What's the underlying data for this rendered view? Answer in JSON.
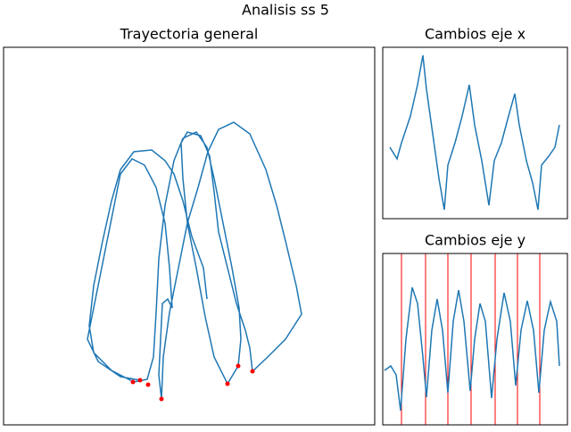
{
  "title": "Analisis ss 5",
  "chart_data": [
    {
      "type": "line",
      "title": "Trayectoria general",
      "xlim": [
        0,
        416
      ],
      "ylim": [
        0,
        423
      ],
      "x": [
        228,
        224,
        211,
        201,
        191,
        181,
        166,
        146,
        131,
        121,
        111,
        101,
        96,
        101,
        121,
        146,
        161,
        168,
        171,
        174,
        181,
        191,
        201,
        216,
        228,
        236,
        246,
        256,
        264,
        266,
        263,
        251,
        236,
        226,
        216,
        206,
        201,
        199,
        206,
        221,
        231,
        236,
        241,
        251,
        261,
        271,
        276,
        279,
        296,
        316,
        334,
        328,
        316,
        306,
        294,
        276,
        258,
        241,
        229,
        218,
        206,
        196,
        186,
        179,
        177,
        174,
        176,
        178,
        184,
        189,
        186,
        181,
        171,
        158,
        144,
        131,
        124,
        114,
        104,
        94,
        106,
        131,
        153
      ],
      "series": [
        {
          "color": "#1f77b4",
          "values": [
            141,
            176,
            211,
            251,
            281,
            296,
            308,
            306,
            286,
            251,
            206,
            156,
            111,
            81,
            61,
            48,
            51,
            76,
            126,
            186,
            246,
            296,
            321,
            328,
            311,
            276,
            226,
            176,
            131,
            96,
            66,
            46,
            76,
            121,
            176,
            226,
            276,
            316,
            328,
            324,
            301,
            261,
            216,
            176,
            136,
            106,
            86,
            60,
            76,
            96,
            124,
            156,
            206,
            246,
            286,
            326,
            339,
            331,
            306,
            266,
            226,
            176,
            126,
            76,
            29,
            56,
            96,
            136,
            141,
            131,
            176,
            226,
            266,
            291,
            298,
            281,
            246,
            196,
            146,
            96,
            71,
            54,
            50
          ]
        }
      ],
      "markers": {
        "color": "#ff0000",
        "x": [
          145,
          153,
          162,
          177,
          251,
          263,
          279
        ],
        "y": [
          48,
          50,
          45,
          29,
          46,
          66,
          60
        ]
      }
    },
    {
      "type": "line",
      "title": "Cambios eje x",
      "xlim": [
        0,
        207
      ],
      "ylim": [
        0,
        192
      ],
      "x": [
        8,
        16,
        21,
        31,
        39,
        45,
        49,
        56,
        63,
        69,
        73,
        81,
        89,
        97,
        103,
        111,
        119,
        125,
        133,
        141,
        148,
        153,
        161,
        168,
        174,
        178,
        186,
        193,
        198
      ],
      "series": [
        {
          "color": "#1f77b4",
          "values": [
            80,
            67,
            85,
            115,
            150,
            183,
            145,
            95,
            45,
            10,
            60,
            85,
            115,
            150,
            105,
            65,
            15,
            65,
            85,
            115,
            140,
            105,
            65,
            40,
            10,
            60,
            70,
            80,
            105
          ]
        }
      ]
    },
    {
      "type": "line",
      "title": "Cambios eje y",
      "xlim": [
        0,
        207
      ],
      "ylim": [
        0,
        192
      ],
      "x": [
        2,
        9,
        15,
        20,
        26,
        33,
        39,
        45,
        49,
        55,
        61,
        67,
        73,
        79,
        85,
        91,
        98,
        103,
        109,
        115,
        122,
        128,
        136,
        143,
        149,
        155,
        162,
        169,
        175,
        181,
        188,
        195,
        198
      ],
      "series": [
        {
          "color": "#1f77b4",
          "values": [
            61,
            66,
            56,
            16,
            96,
            154,
            136,
            76,
            31,
            106,
            141,
            106,
            36,
            116,
            151,
            116,
            38,
            96,
            136,
            116,
            30,
            96,
            148,
            116,
            44,
            106,
            139,
            106,
            36,
            106,
            138,
            116,
            66
          ]
        }
      ],
      "vlines": {
        "color": "#ff0000",
        "x": [
          21,
          48,
          73,
          99,
          126,
          151,
          176
        ]
      }
    }
  ]
}
